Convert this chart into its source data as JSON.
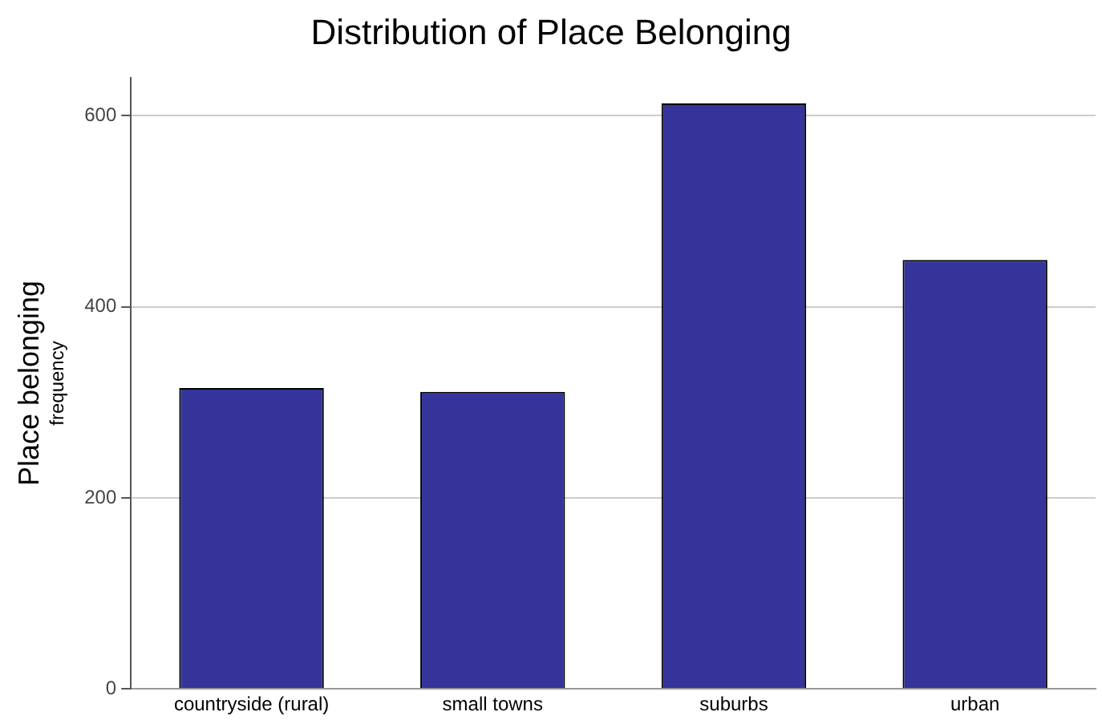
{
  "chart_data": {
    "type": "bar",
    "title": "Distribution of Place Belonging",
    "ylabel": "Place belonging",
    "annotations": [
      "frequency"
    ],
    "categories": [
      "countryside (rural)",
      "small towns",
      "suburbs",
      "urban"
    ],
    "values": [
      315,
      311,
      613,
      449
    ],
    "color": "#35349a",
    "ylim": [
      0,
      640
    ],
    "yticks": [
      0,
      200,
      400,
      600
    ],
    "grid": "y"
  }
}
